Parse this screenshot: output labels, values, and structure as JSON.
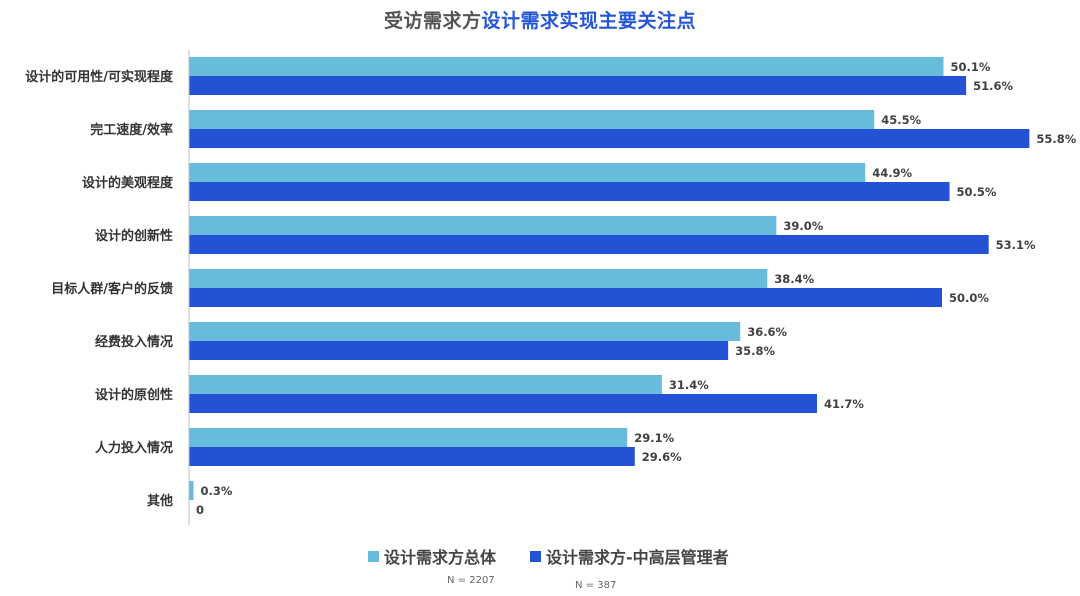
{
  "chart_data": {
    "type": "bar",
    "orientation": "horizontal",
    "title_part1": "受访需求方",
    "title_part2": "设计需求实现主要关注点",
    "categories": [
      "设计的可用性/可实现程度",
      "完工速度/效率",
      "设计的美观程度",
      "设计的创新性",
      "目标人群/客户的反馈",
      "经费投入情况",
      "设计的原创性",
      "人力投入情况",
      "其他"
    ],
    "series": [
      {
        "name": "设计需求方总体",
        "color": "#67bcdb",
        "values": [
          50.1,
          45.5,
          44.9,
          39.0,
          38.4,
          36.6,
          31.4,
          29.1,
          0.3
        ],
        "labels": [
          "50.1%",
          "45.5%",
          "44.9%",
          "39.0%",
          "38.4%",
          "36.6%",
          "31.4%",
          "29.1%",
          "0.3%"
        ],
        "n_note": "N = 2207"
      },
      {
        "name": "设计需求方-中高层管理者",
        "color": "#2352d4",
        "values": [
          51.6,
          55.8,
          50.5,
          53.1,
          50.0,
          35.8,
          41.7,
          29.6,
          0
        ],
        "labels": [
          "51.6%",
          "55.8%",
          "50.5%",
          "53.1%",
          "50.0%",
          "35.8%",
          "41.7%",
          "29.6%",
          "0"
        ],
        "n_note": "N = 387"
      }
    ],
    "xlabel": "",
    "ylabel": "",
    "xlim": [
      0,
      56
    ],
    "grid": false,
    "legend_position": "bottom"
  }
}
